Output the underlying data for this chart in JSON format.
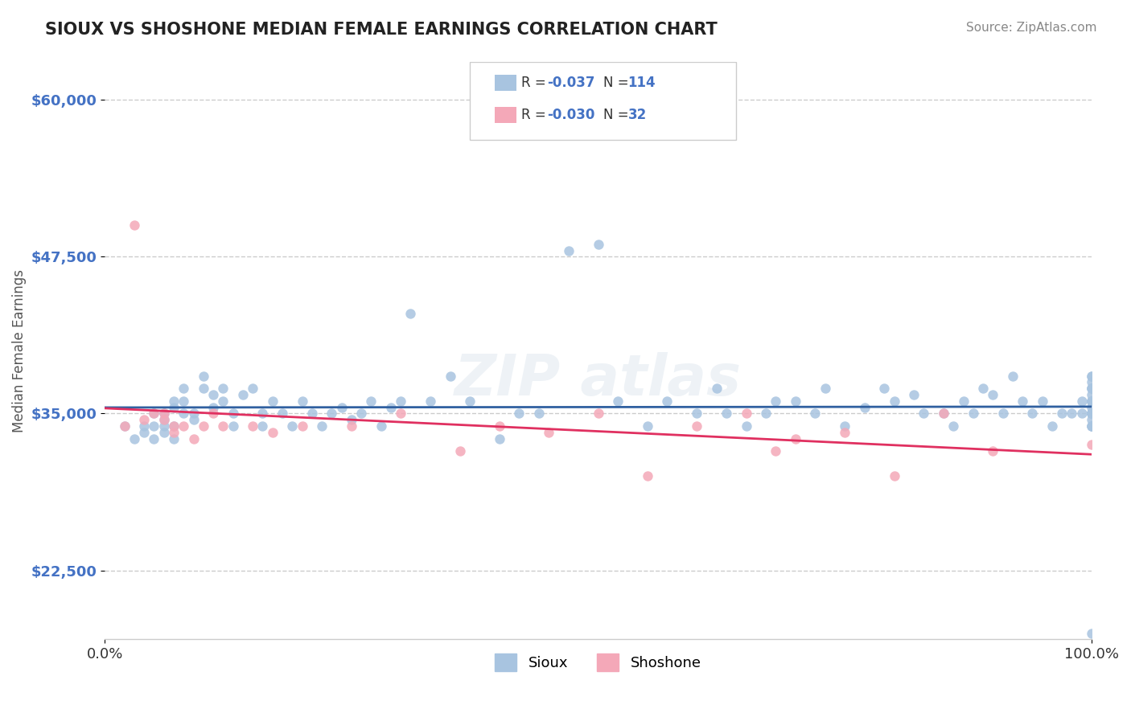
{
  "title": "SIOUX VS SHOSHONE MEDIAN FEMALE EARNINGS CORRELATION CHART",
  "source": "Source: ZipAtlas.com",
  "xlabel": "",
  "ylabel": "Median Female Earnings",
  "xlim": [
    0,
    1
  ],
  "ylim": [
    17000,
    63000
  ],
  "yticks": [
    22500,
    35000,
    47500,
    60000
  ],
  "ytick_labels": [
    "$22,500",
    "$35,000",
    "$47,500",
    "$60,000"
  ],
  "xticks": [
    0,
    1
  ],
  "xtick_labels": [
    "0.0%",
    "100.0%"
  ],
  "sioux_color": "#a8c4e0",
  "shoshone_color": "#f4a8b8",
  "trend_sioux_color": "#3060a0",
  "trend_shoshone_color": "#e03060",
  "sioux_R": -0.037,
  "sioux_N": 114,
  "shoshone_R": -0.03,
  "shoshone_N": 32,
  "watermark": "ZIPatlas",
  "background_color": "#ffffff",
  "grid_color": "#cccccc",
  "sioux_x": [
    0.02,
    0.03,
    0.04,
    0.04,
    0.05,
    0.05,
    0.05,
    0.06,
    0.06,
    0.06,
    0.06,
    0.07,
    0.07,
    0.07,
    0.07,
    0.08,
    0.08,
    0.08,
    0.09,
    0.09,
    0.1,
    0.1,
    0.11,
    0.11,
    0.12,
    0.12,
    0.13,
    0.13,
    0.14,
    0.15,
    0.16,
    0.16,
    0.17,
    0.18,
    0.19,
    0.2,
    0.21,
    0.22,
    0.23,
    0.24,
    0.25,
    0.26,
    0.27,
    0.28,
    0.29,
    0.3,
    0.31,
    0.33,
    0.35,
    0.37,
    0.4,
    0.42,
    0.44,
    0.47,
    0.5,
    0.52,
    0.55,
    0.57,
    0.6,
    0.62,
    0.63,
    0.65,
    0.67,
    0.68,
    0.7,
    0.72,
    0.73,
    0.75,
    0.77,
    0.79,
    0.8,
    0.82,
    0.83,
    0.85,
    0.86,
    0.87,
    0.88,
    0.89,
    0.9,
    0.91,
    0.92,
    0.93,
    0.94,
    0.95,
    0.96,
    0.97,
    0.98,
    0.99,
    0.99,
    1.0,
    1.0,
    1.0,
    1.0,
    1.0,
    1.0,
    1.0,
    1.0,
    1.0,
    1.0,
    1.0,
    1.0,
    1.0,
    1.0,
    1.0,
    1.0,
    1.0,
    1.0,
    1.0,
    1.0,
    1.0,
    1.0,
    1.0,
    1.0,
    1.0
  ],
  "sioux_y": [
    34000,
    33000,
    34000,
    33500,
    35000,
    34000,
    33000,
    35000,
    34000,
    34500,
    33500,
    36000,
    35500,
    34000,
    33000,
    37000,
    36000,
    35000,
    34500,
    35000,
    38000,
    37000,
    36500,
    35500,
    37000,
    36000,
    35000,
    34000,
    36500,
    37000,
    35000,
    34000,
    36000,
    35000,
    34000,
    36000,
    35000,
    34000,
    35000,
    35500,
    34500,
    35000,
    36000,
    34000,
    35500,
    36000,
    43000,
    36000,
    38000,
    36000,
    33000,
    35000,
    35000,
    48000,
    48500,
    36000,
    34000,
    36000,
    35000,
    37000,
    35000,
    34000,
    35000,
    36000,
    36000,
    35000,
    37000,
    34000,
    35500,
    37000,
    36000,
    36500,
    35000,
    35000,
    34000,
    36000,
    35000,
    37000,
    36500,
    35000,
    38000,
    36000,
    35000,
    36000,
    34000,
    35000,
    35000,
    36000,
    35000,
    34000,
    35500,
    36000,
    34000,
    38000,
    37000,
    35000,
    36000,
    35000,
    37500,
    37000,
    36000,
    35000,
    38000,
    36500,
    35000,
    34500,
    37000,
    35000,
    36000,
    34000,
    35000,
    36000,
    17500,
    35000
  ],
  "shoshone_x": [
    0.02,
    0.03,
    0.04,
    0.05,
    0.06,
    0.06,
    0.07,
    0.07,
    0.08,
    0.09,
    0.1,
    0.11,
    0.12,
    0.15,
    0.17,
    0.2,
    0.25,
    0.3,
    0.36,
    0.4,
    0.45,
    0.5,
    0.55,
    0.6,
    0.65,
    0.68,
    0.7,
    0.75,
    0.8,
    0.85,
    0.9,
    1.0
  ],
  "shoshone_y": [
    34000,
    50000,
    34500,
    35000,
    35000,
    34500,
    33500,
    34000,
    34000,
    33000,
    34000,
    35000,
    34000,
    34000,
    33500,
    34000,
    34000,
    35000,
    32000,
    34000,
    33500,
    35000,
    30000,
    34000,
    35000,
    32000,
    33000,
    33500,
    30000,
    35000,
    32000,
    32500
  ]
}
